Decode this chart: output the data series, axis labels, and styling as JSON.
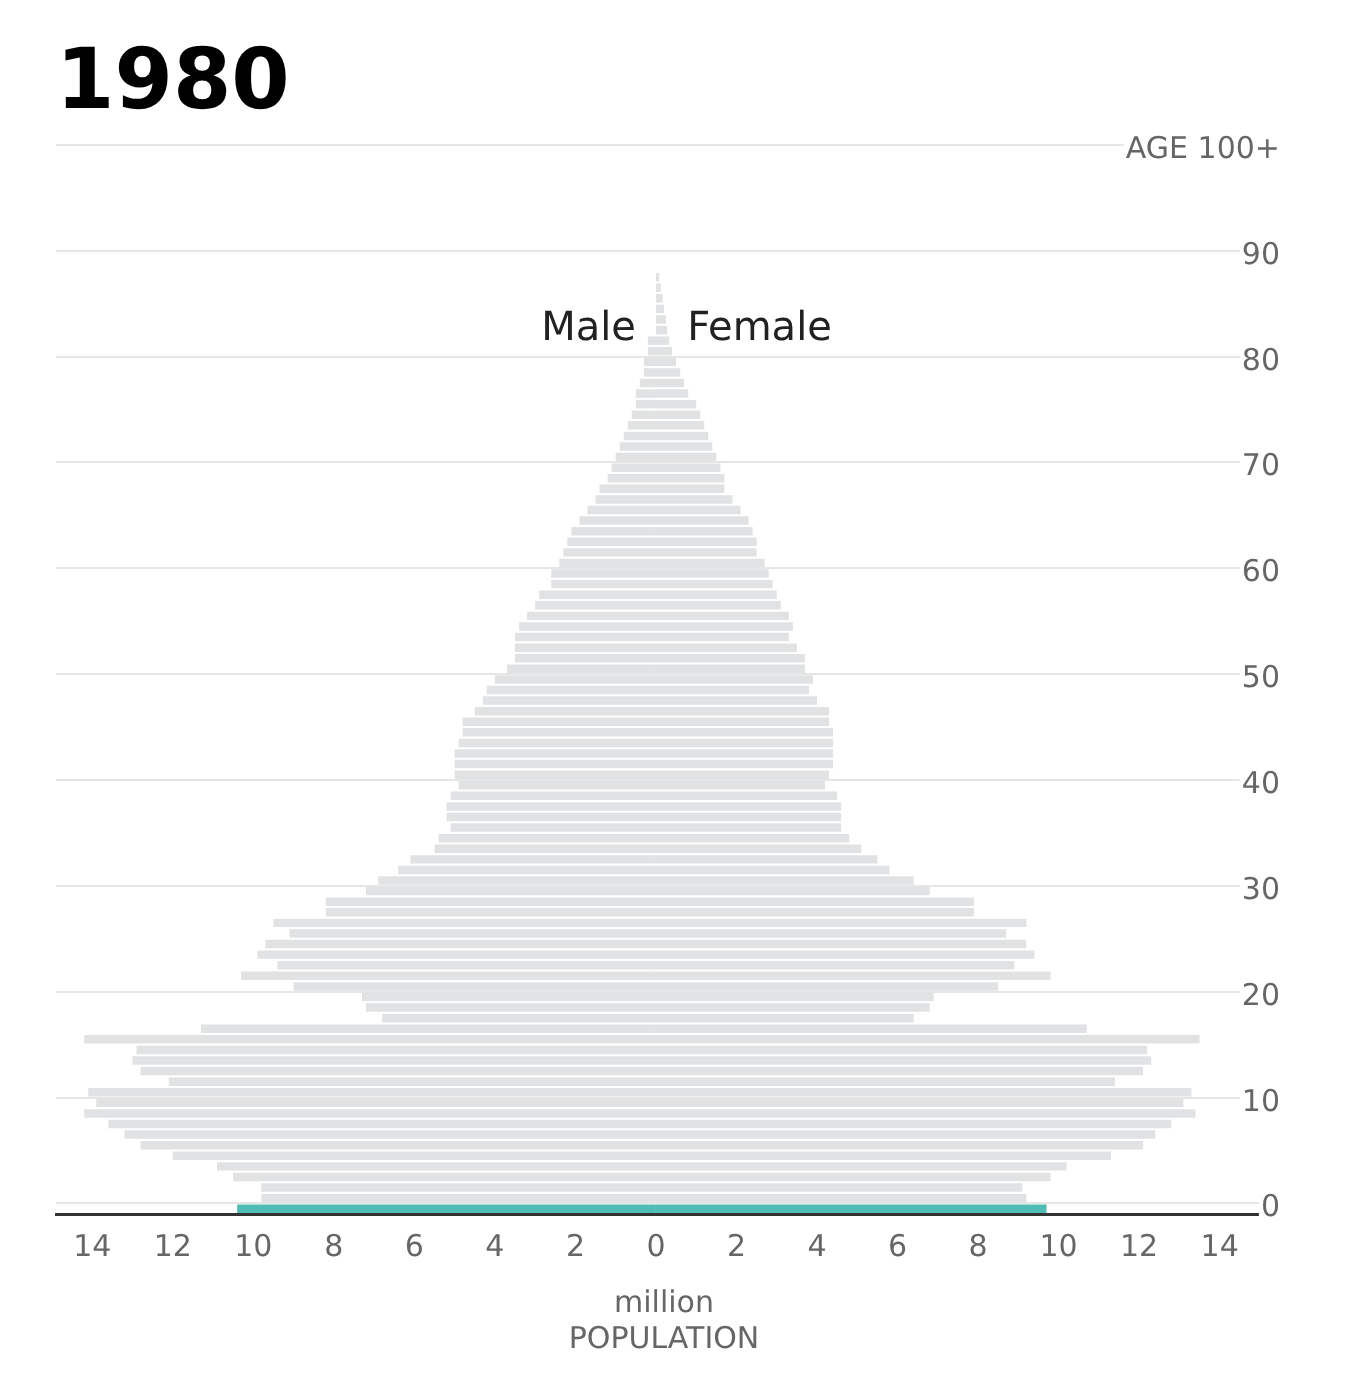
{
  "chart_data": {
    "type": "bar",
    "orientation": "horizontal",
    "title": "1980",
    "xlabel": "POPULATION",
    "annotations": [
      "million"
    ],
    "categories": [
      "AGE 100+",
      null,
      null,
      null,
      null,
      null,
      null,
      null,
      null,
      null,
      "90",
      null,
      null,
      null,
      null,
      null,
      null,
      null,
      null,
      null,
      "80",
      null,
      null,
      null,
      null,
      null,
      null,
      null,
      null,
      null,
      "70",
      null,
      null,
      null,
      null,
      null,
      null,
      null,
      null,
      null,
      "60",
      null,
      null,
      null,
      null,
      null,
      null,
      null,
      null,
      null,
      "50",
      null,
      null,
      null,
      null,
      null,
      null,
      null,
      null,
      null,
      "40",
      null,
      null,
      null,
      null,
      null,
      null,
      null,
      null,
      null,
      "30",
      null,
      null,
      null,
      null,
      null,
      null,
      null,
      null,
      null,
      "20",
      null,
      null,
      null,
      null,
      null,
      null,
      null,
      null,
      null,
      "10",
      null,
      null,
      null,
      null,
      null,
      null,
      null,
      null,
      null,
      "0"
    ],
    "xlim": [
      -14.9,
      15.3
    ],
    "xticks": [
      {
        "value": -14,
        "label": "14"
      },
      {
        "value": -12,
        "label": "12"
      },
      {
        "value": -10,
        "label": "10"
      },
      {
        "value": -8,
        "label": "8"
      },
      {
        "value": -6,
        "label": "6"
      },
      {
        "value": -4,
        "label": "4"
      },
      {
        "value": -2,
        "label": "2"
      },
      0,
      2,
      4,
      6,
      8,
      10,
      12,
      14
    ],
    "grid": "y",
    "legend": false,
    "stacked": true,
    "series": [
      {
        "name": "Male",
        "values": [
          null,
          null,
          null,
          null,
          null,
          null,
          null,
          null,
          null,
          null,
          null,
          null,
          null,
          null,
          null,
          null,
          null,
          null,
          -0.2,
          -0.2,
          -0.3,
          -0.3,
          -0.4,
          -0.5,
          -0.5,
          -0.6,
          -0.7,
          -0.8,
          -0.9,
          -1.0,
          -1.1,
          -1.2,
          -1.4,
          -1.5,
          -1.7,
          -1.9,
          -2.1,
          -2.2,
          -2.3,
          -2.4,
          -2.6,
          -2.6,
          -2.9,
          -3.0,
          -3.2,
          -3.4,
          -3.5,
          -3.5,
          -3.5,
          -3.7,
          -4.0,
          -4.2,
          -4.3,
          -4.5,
          -4.8,
          -4.8,
          -4.9,
          -5.0,
          -5.0,
          -5.0,
          -4.9,
          -5.1,
          -5.2,
          -5.2,
          -5.1,
          -5.4,
          -5.5,
          -6.1,
          -6.4,
          -6.9,
          -7.2,
          -8.2,
          -8.2,
          -9.5,
          -9.1,
          -9.7,
          -9.9,
          -9.4,
          -10.3,
          -9.0,
          -7.3,
          -7.2,
          -6.8,
          -11.3,
          -14.2,
          -12.9,
          -13.0,
          -12.8,
          -12.1,
          -14.1,
          -13.9,
          -14.2,
          -13.6,
          -13.2,
          -12.8,
          -12.0,
          -10.9,
          -10.5,
          -9.8,
          -9.8,
          -10.4
        ],
        "colors": [
          "#e1e2e3",
          "#e1e2e3",
          "#e1e2e3",
          "#e1e2e3",
          "#e1e2e3",
          "#e1e2e3",
          "#e1e2e3",
          "#e1e2e3",
          "#e1e2e3",
          "#e1e2e3",
          "#e1e2e3",
          "#e1e2e3",
          "#e1e2e3",
          "#e1e2e3",
          "#e1e2e3",
          "#e1e2e3",
          "#e1e2e3",
          "#e1e2e3",
          "#e1e2e3",
          "#e1e2e3",
          "#e1e2e3",
          "#e1e2e3",
          "#e1e2e3",
          "#e1e2e3",
          "#e1e2e3",
          "#e1e2e3",
          "#e1e2e3",
          "#e1e2e3",
          "#e1e2e3",
          "#e1e2e3",
          "#e1e2e3",
          "#e1e2e3",
          "#e1e2e3",
          "#e1e2e3",
          "#e1e2e3",
          "#e1e2e3",
          "#e1e2e3",
          "#e1e2e3",
          "#e1e2e3",
          "#e1e2e3",
          "#e1e2e3",
          "#e1e2e3",
          "#e1e2e3",
          "#e1e2e3",
          "#e1e2e3",
          "#e1e2e3",
          "#e1e2e3",
          "#e1e2e3",
          "#e1e2e3",
          "#e1e2e3",
          "#e1e2e3",
          "#e1e2e3",
          "#e1e2e3",
          "#e1e2e3",
          "#e1e2e3",
          "#e1e2e3",
          "#e1e2e3",
          "#e1e2e3",
          "#e1e2e3",
          "#e1e2e3",
          "#e1e2e3",
          "#e1e2e3",
          "#e1e2e3",
          "#e1e2e3",
          "#e1e2e3",
          "#e1e2e3",
          "#e1e2e3",
          "#e1e2e3",
          "#e1e2e3",
          "#e1e2e3",
          "#e1e2e3",
          "#e1e2e3",
          "#e1e2e3",
          "#e1e2e3",
          "#e1e2e3",
          "#e1e2e3",
          "#e1e2e3",
          "#e1e2e3",
          "#e1e2e3",
          "#e1e2e3",
          "#e1e2e3",
          "#e1e2e3",
          "#e1e2e3",
          "#e1e2e3",
          "#e1e2e3",
          "#e1e2e3",
          "#e1e2e3",
          "#e1e2e3",
          "#e1e2e3",
          "#e1e2e3",
          "#e1e2e3",
          "#e1e2e3",
          "#e1e2e3",
          "#e1e2e3",
          "#e1e2e3",
          "#e1e2e3",
          "#e1e2e3",
          "#e1e2e3",
          "#e1e2e3",
          "#e1e2e3",
          "#4fbdb6"
        ]
      },
      {
        "name": "Female",
        "values": [
          null,
          null,
          null,
          null,
          null,
          null,
          null,
          null,
          null,
          null,
          null,
          null,
          0.08,
          0.12,
          0.17,
          0.2,
          0.25,
          0.28,
          0.33,
          0.4,
          0.5,
          0.6,
          0.7,
          0.8,
          1.0,
          1.1,
          1.2,
          1.3,
          1.4,
          1.5,
          1.6,
          1.7,
          1.7,
          1.9,
          2.1,
          2.3,
          2.4,
          2.5,
          2.5,
          2.7,
          2.8,
          2.9,
          3.0,
          3.1,
          3.3,
          3.4,
          3.3,
          3.5,
          3.7,
          3.7,
          3.9,
          3.8,
          4.0,
          4.3,
          4.3,
          4.4,
          4.4,
          4.4,
          4.4,
          4.3,
          4.2,
          4.5,
          4.6,
          4.6,
          4.6,
          4.8,
          5.1,
          5.5,
          5.8,
          6.4,
          6.8,
          7.9,
          7.9,
          9.2,
          8.7,
          9.2,
          9.4,
          8.9,
          9.8,
          8.5,
          6.9,
          6.8,
          6.4,
          10.7,
          13.5,
          12.2,
          12.3,
          12.1,
          11.4,
          13.3,
          13.1,
          13.4,
          12.8,
          12.4,
          12.1,
          11.3,
          10.2,
          9.8,
          9.1,
          9.2,
          9.7
        ],
        "colors": [
          "#e1e2e3",
          "#e1e2e3",
          "#e1e2e3",
          "#e1e2e3",
          "#e1e2e3",
          "#e1e2e3",
          "#e1e2e3",
          "#e1e2e3",
          "#e1e2e3",
          "#e1e2e3",
          "#e1e2e3",
          "#e1e2e3",
          "#e1e2e3",
          "#e1e2e3",
          "#e1e2e3",
          "#e1e2e3",
          "#e1e2e3",
          "#e1e2e3",
          "#e1e2e3",
          "#e1e2e3",
          "#e1e2e3",
          "#e1e2e3",
          "#e1e2e3",
          "#e1e2e3",
          "#e1e2e3",
          "#e1e2e3",
          "#e1e2e3",
          "#e1e2e3",
          "#e1e2e3",
          "#e1e2e3",
          "#e1e2e3",
          "#e1e2e3",
          "#e1e2e3",
          "#e1e2e3",
          "#e1e2e3",
          "#e1e2e3",
          "#e1e2e3",
          "#e1e2e3",
          "#e1e2e3",
          "#e1e2e3",
          "#e1e2e3",
          "#e1e2e3",
          "#e1e2e3",
          "#e1e2e3",
          "#e1e2e3",
          "#e1e2e3",
          "#e1e2e3",
          "#e1e2e3",
          "#e1e2e3",
          "#e1e2e3",
          "#e1e2e3",
          "#e1e2e3",
          "#e1e2e3",
          "#e1e2e3",
          "#e1e2e3",
          "#e1e2e3",
          "#e1e2e3",
          "#e1e2e3",
          "#e1e2e3",
          "#e1e2e3",
          "#e1e2e3",
          "#e1e2e3",
          "#e1e2e3",
          "#e1e2e3",
          "#e1e2e3",
          "#e1e2e3",
          "#e1e2e3",
          "#e1e2e3",
          "#e1e2e3",
          "#e1e2e3",
          "#e1e2e3",
          "#e1e2e3",
          "#e1e2e3",
          "#e1e2e3",
          "#e1e2e3",
          "#e1e2e3",
          "#e1e2e3",
          "#e1e2e3",
          "#e1e2e3",
          "#e1e2e3",
          "#e1e2e3",
          "#e1e2e3",
          "#e1e2e3",
          "#e1e2e3",
          "#e1e2e3",
          "#e1e2e3",
          "#e1e2e3",
          "#e1e2e3",
          "#e1e2e3",
          "#e1e2e3",
          "#e1e2e3",
          "#e1e2e3",
          "#e1e2e3",
          "#e1e2e3",
          "#e1e2e3",
          "#e1e2e3",
          "#e1e2e3",
          "#e1e2e3",
          "#e1e2e3",
          "#e1e2e3",
          "#4fbdb6"
        ]
      }
    ]
  }
}
